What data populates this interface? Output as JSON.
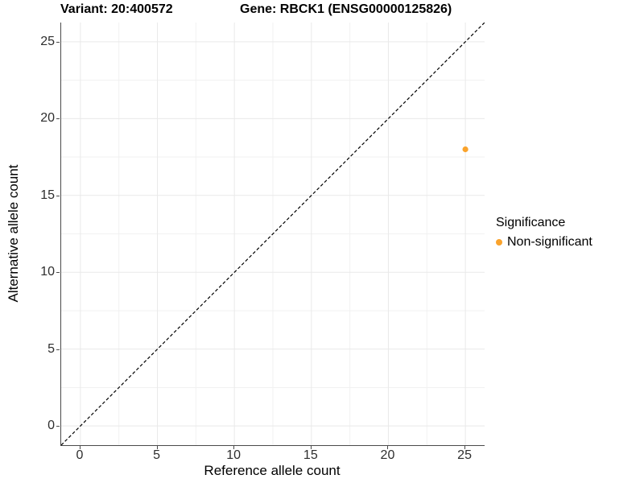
{
  "chart_data": {
    "type": "scatter",
    "titles": {
      "left": "Variant: 20:400572",
      "right": "Gene: RBCK1 (ENSG00000125826)"
    },
    "xlabel": "Reference allele count",
    "ylabel": "Alternative allele count",
    "x_ticks": [
      0,
      5,
      10,
      15,
      20,
      25
    ],
    "y_ticks": [
      0,
      5,
      10,
      15,
      20,
      25
    ],
    "x_range": [
      -1.25,
      26.25
    ],
    "y_range": [
      -1.25,
      26.25
    ],
    "grid": {
      "major": true,
      "minor": true
    },
    "reference_line": {
      "type": "identity y=x",
      "style": "dashed",
      "color": "#000000"
    },
    "points": [
      {
        "x": 25,
        "y": 18,
        "series": "Non-significant"
      }
    ],
    "legend": {
      "title": "Significance",
      "position": "right",
      "entries": [
        {
          "label": "Non-significant",
          "color": "#FAA32C"
        }
      ]
    }
  }
}
